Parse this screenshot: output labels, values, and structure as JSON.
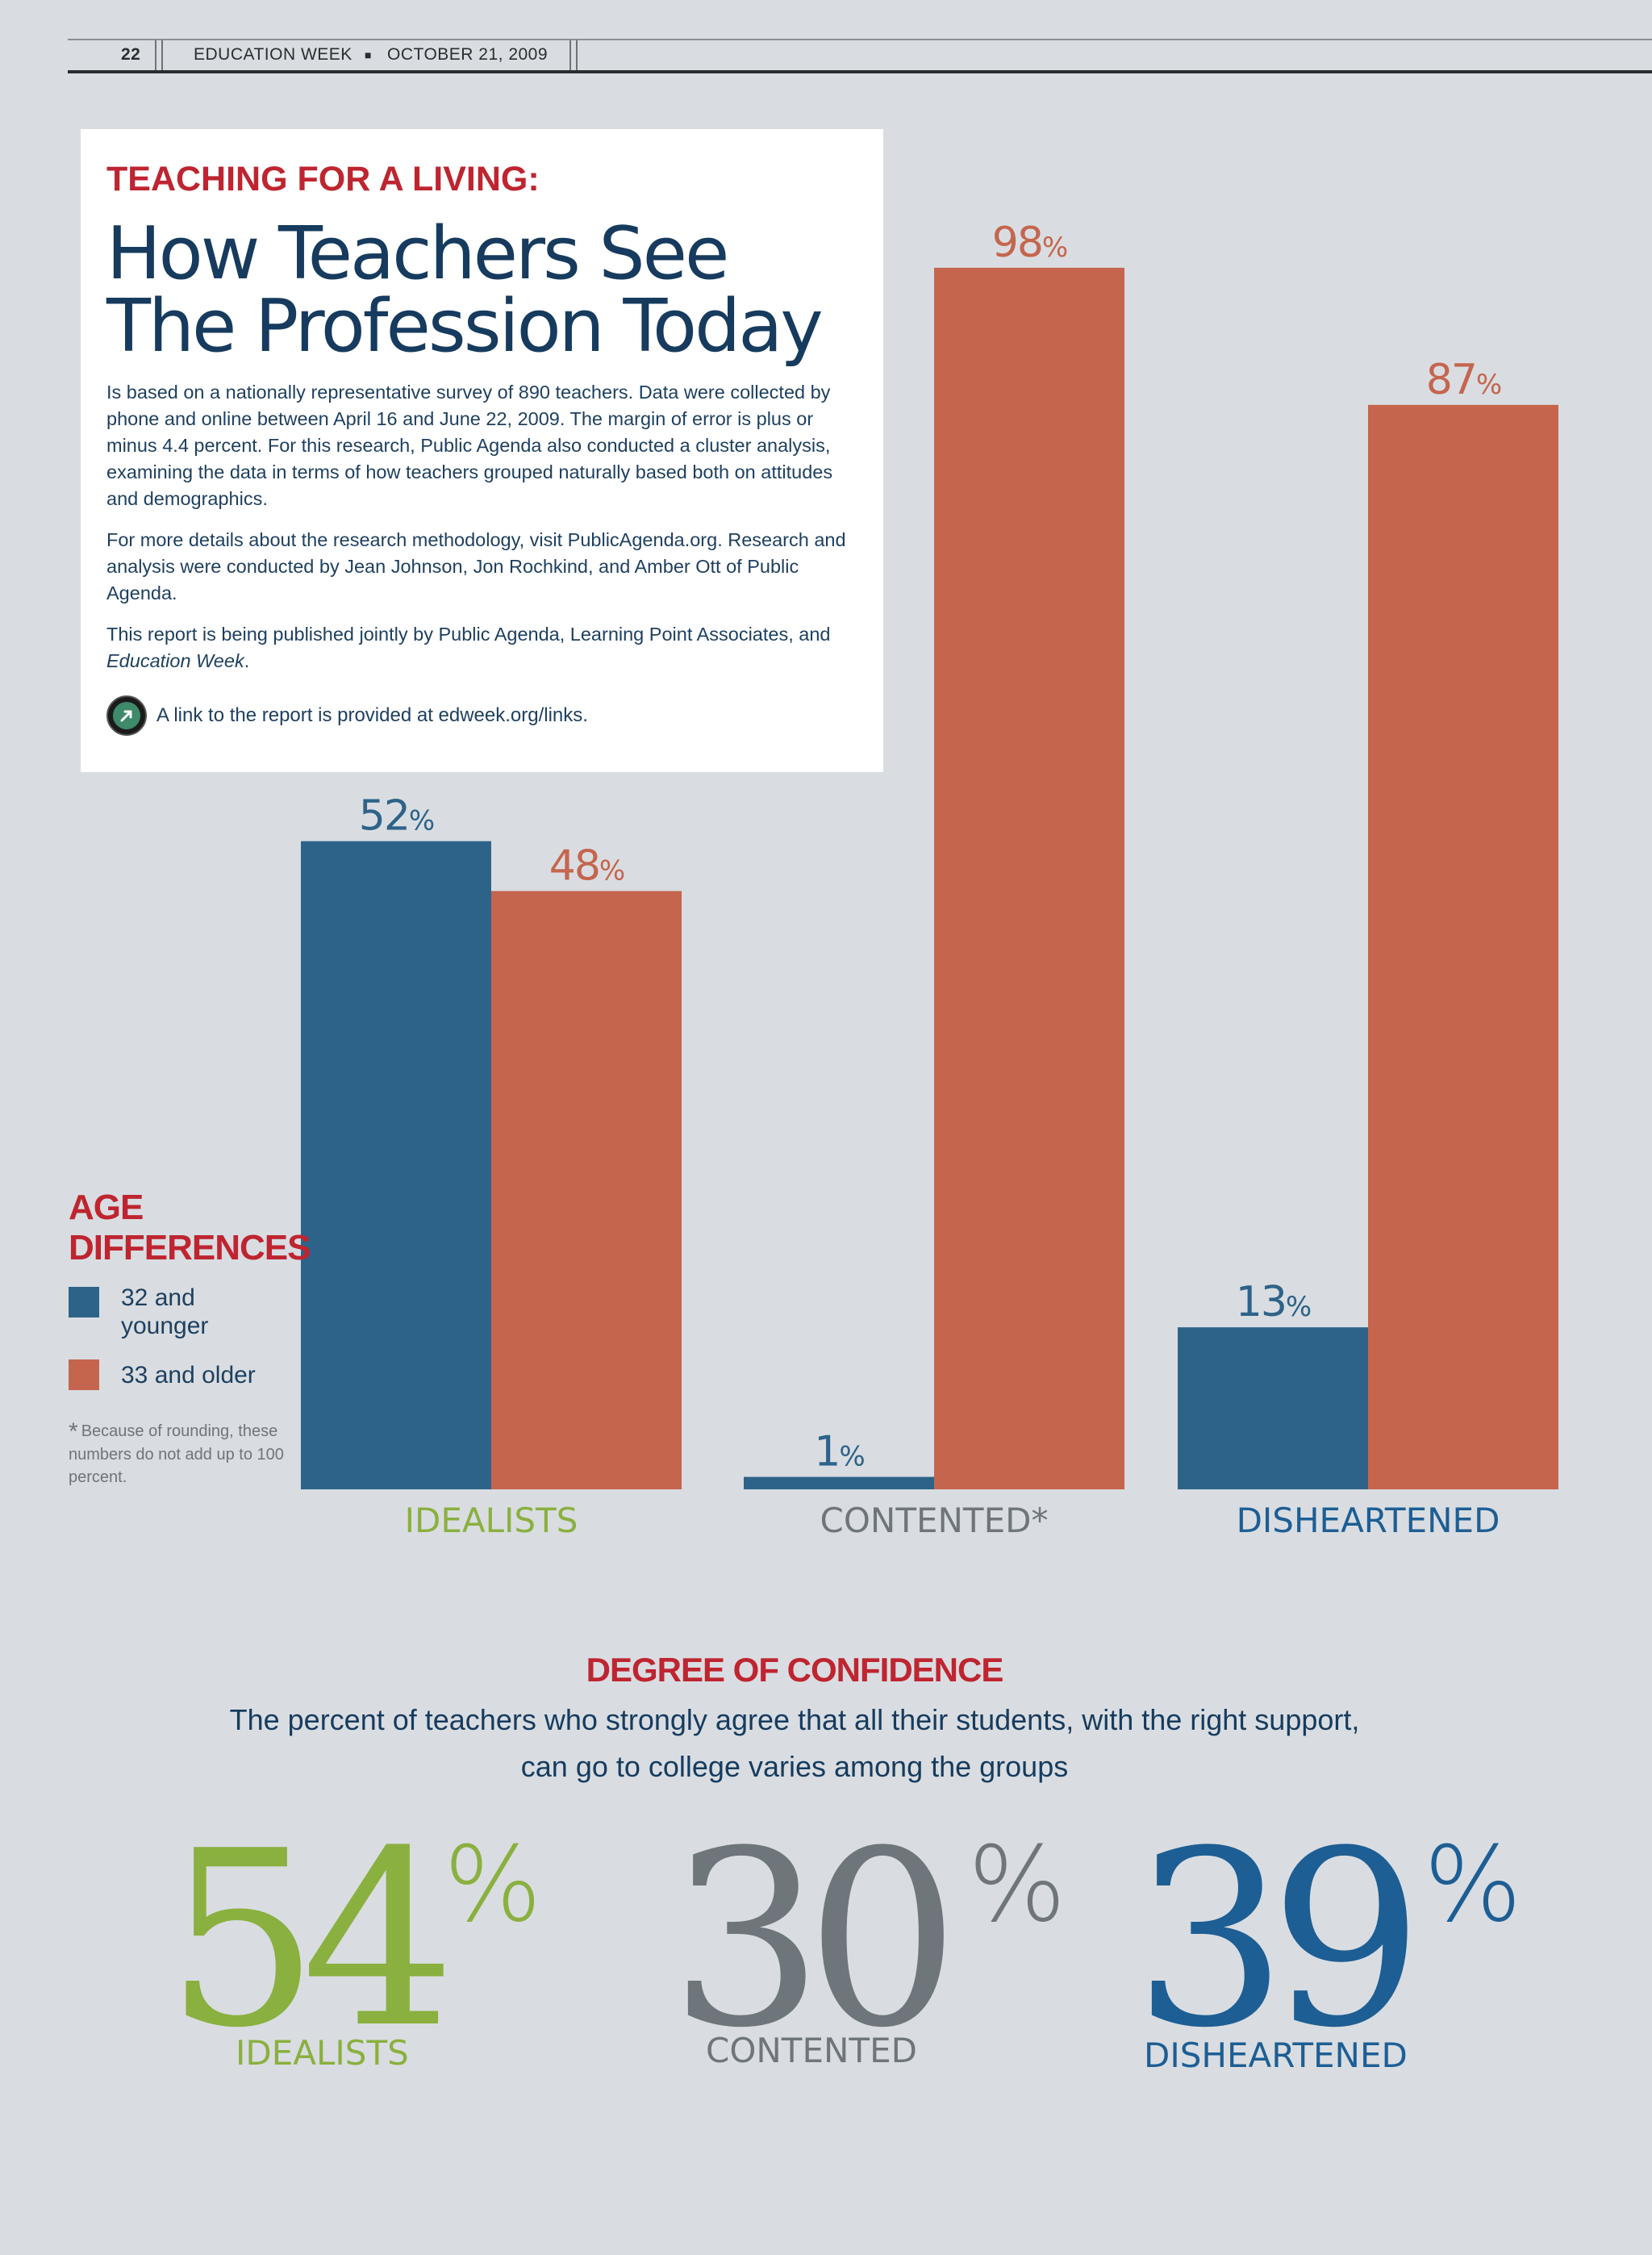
{
  "header": {
    "page_number": "22",
    "publication": "EDUCATION WEEK",
    "separator": "■",
    "date": "OCTOBER 21, 2009"
  },
  "intro": {
    "kicker": "TEACHING FOR A LIVING:",
    "title_line1": "How Teachers See",
    "title_line2": "The Profession Today",
    "paragraph1": "Is based on a nationally representative survey of 890 teachers. Data were collected by phone and online between April 16 and June 22, 2009. The margin of error is plus or minus 4.4 percent. For this research, Public Agenda also conducted a cluster analysis, examining the data in terms of how teachers grouped naturally based both on attitudes and demographics.",
    "paragraph2": "For more details about the research methodology, visit PublicAgenda.org. Research and analysis were conducted by Jean Johnson, Jon Rochkind, and Amber Ott of Public Agenda.",
    "paragraph3_text": "This report is being published jointly by Public Agenda, Learning Point Associates, and ",
    "paragraph3_italic": "Education Week",
    "paragraph3_end": ".",
    "link_text": "A link to the report is provided at edweek.org/links.",
    "link_icon": "arrow-link-icon"
  },
  "legend": {
    "title_line1": "AGE",
    "title_line2": "DIFFERENCES",
    "young_label_line1": "32 and",
    "young_label_line2": "younger",
    "old_label": "33 and older",
    "footnote_mark": "*",
    "footnote": "Because of rounding, these numbers do not add up to 100 percent."
  },
  "chart_data": {
    "type": "bar",
    "title": "AGE DIFFERENCES",
    "categories": [
      "IDEALISTS",
      "CONTENTED*",
      "DISHEARTENED"
    ],
    "category_colors": [
      "#8ab03f",
      "#6e757b",
      "#1d5e94"
    ],
    "series": [
      {
        "name": "32 and younger",
        "color": "#2e6389",
        "values": [
          52,
          1,
          13
        ]
      },
      {
        "name": "33 and older",
        "color": "#c5654e",
        "values": [
          48,
          98,
          87
        ]
      }
    ],
    "value_suffix": "%",
    "ylim": [
      0,
      100
    ],
    "xlabel": "",
    "ylabel": "",
    "grid": false,
    "legend_position": "left"
  },
  "confidence": {
    "title": "DEGREE OF CONFIDENCE",
    "subtitle_line1": "The percent of teachers who strongly agree that all their students, with the right support,",
    "subtitle_line2": "can go to college varies among the groups",
    "percent_sign": "%",
    "stats": [
      {
        "value": "54",
        "label": "IDEALISTS",
        "color": "#8ab03f"
      },
      {
        "value": "30",
        "label": "CONTENTED",
        "color": "#6e757b"
      },
      {
        "value": "39",
        "label": "DISHEARTENED",
        "color": "#1d5e94"
      }
    ]
  }
}
